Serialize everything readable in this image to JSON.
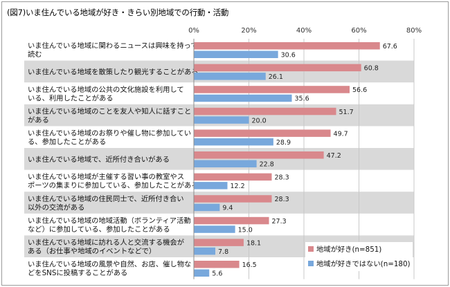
{
  "chart_data": {
    "type": "bar",
    "orientation": "horizontal",
    "title": "(図7)いま住んでいる地域が好き・きらい別地域での行動・活動",
    "xlim": [
      0,
      80
    ],
    "x_ticks": [
      "0%",
      "20%",
      "40%",
      "60%",
      "80%"
    ],
    "x_tick_values": [
      0,
      20,
      40,
      60,
      80
    ],
    "grid": "vertical",
    "legend_position": "bottom-right",
    "categories": [
      [
        "いま住んでいる地域に関わるニュースは興味を持って",
        "読む"
      ],
      [
        "いま住んでいる地域を散策したり観光することがある"
      ],
      [
        "いま住んでいる地域の公共の文化施設を利用して",
        "いる、利用したことがある"
      ],
      [
        "いま住んでいる地域のことを友人や知人に話すこと",
        "がある"
      ],
      [
        "いま住んでいる地域のお祭りや催し物に参加してい",
        "る、参加したことがある"
      ],
      [
        "いま住んでいる地域で、近所付き合いがある"
      ],
      [
        "いま住んでいる地域が主催する習い事の教室やス",
        "ポーツの集まりに参加している、参加したことがある"
      ],
      [
        "いま住んでいる地域の住民同士で、近所付き合い",
        "以外の交流がある"
      ],
      [
        "いま住んでいる地域の地域活動（ボランティア活動",
        "など）に参加している、参加したことがある"
      ],
      [
        "いま住んでいる地域に訪れる人と交流する機会が",
        "ある（お仕事や地域のイベントなどで）"
      ],
      [
        "いま住んでいる地域の風景や自然、お店、催し物な",
        "どをSNSに投稿することがある"
      ]
    ],
    "series": [
      {
        "name": "地域が好き(n=851)",
        "color": "#d9888c",
        "values": [
          67.6,
          60.8,
          56.6,
          51.7,
          49.7,
          47.2,
          28.3,
          28.3,
          27.3,
          18.1,
          16.5
        ],
        "labels": [
          "67.6",
          "60.8",
          "56.6",
          "51.7",
          "49.7",
          "47.2",
          "28.3",
          "28.3",
          "27.3",
          "18.1",
          "16.5"
        ]
      },
      {
        "name": "地域が好きではない(n=180)",
        "color": "#78a8dc",
        "values": [
          30.6,
          26.1,
          35.6,
          20.0,
          28.9,
          22.8,
          12.2,
          9.4,
          15.0,
          7.8,
          5.6
        ],
        "labels": [
          "30.6",
          "26.1",
          "35.6",
          "20.0",
          "28.9",
          "22.8",
          "12.2",
          "9.4",
          "15.0",
          "7.8",
          "5.6"
        ]
      }
    ],
    "row_shading": "#d9d9d9"
  }
}
